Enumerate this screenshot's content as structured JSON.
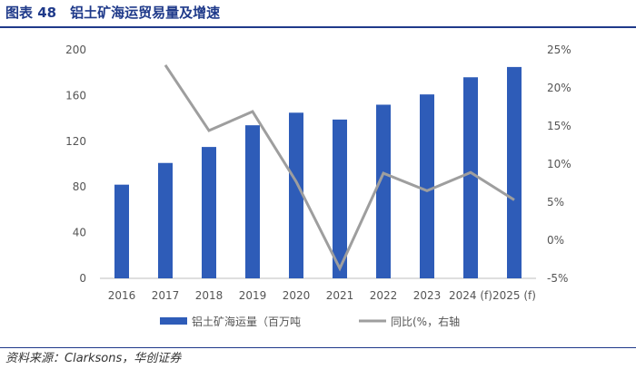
{
  "header": {
    "title": "图表 48　铝土矿海运贸易量及增速"
  },
  "footer": {
    "source": "资料来源：Clarksons，华创证券"
  },
  "colors": {
    "bar": "#2e5cb8",
    "line": "#9e9e9e",
    "accent": "#1f3a8a"
  },
  "chart_data": {
    "type": "bar",
    "title": "",
    "categories": [
      "2016",
      "2017",
      "2018",
      "2019",
      "2020",
      "2021",
      "2022",
      "2023",
      "2024 (f)",
      "2025 (f)"
    ],
    "series": [
      {
        "name": "铝土矿海运量（百万吨",
        "type": "bar",
        "axis": "left",
        "values": [
          82,
          101,
          115,
          134,
          145,
          139,
          152,
          161,
          176,
          185
        ]
      },
      {
        "name": "同比(%，右轴",
        "type": "line",
        "axis": "right",
        "values": [
          null,
          23,
          14.4,
          16.9,
          7.7,
          -3.7,
          8.8,
          6.5,
          8.9,
          5.3
        ]
      }
    ],
    "y_left": {
      "min": 0,
      "max": 200,
      "ticks": [
        0,
        40,
        80,
        120,
        160,
        200
      ]
    },
    "y_right": {
      "min": -5,
      "max": 25,
      "ticks": [
        "-5%",
        "0%",
        "5%",
        "10%",
        "15%",
        "20%",
        "25%"
      ]
    },
    "grid": false,
    "legend": "bottom"
  }
}
